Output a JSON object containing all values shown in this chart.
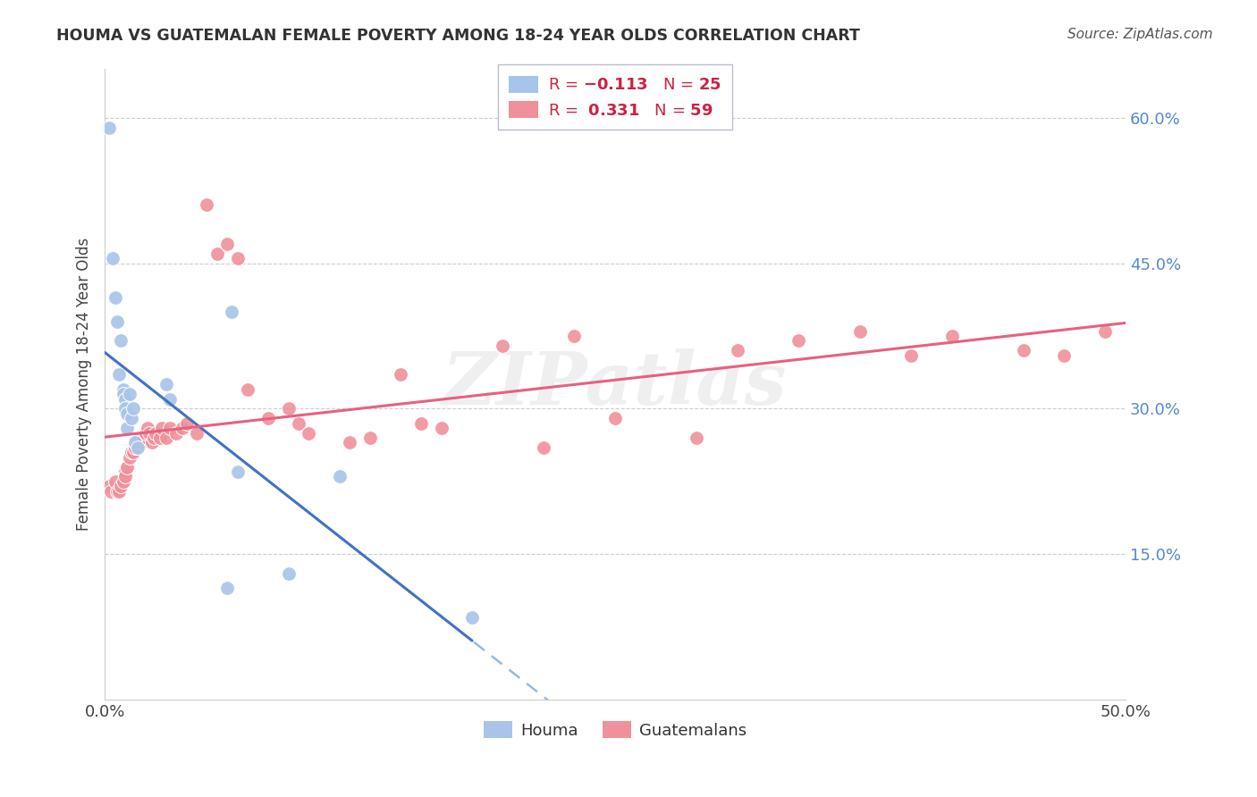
{
  "title": "HOUMA VS GUATEMALAN FEMALE POVERTY AMONG 18-24 YEAR OLDS CORRELATION CHART",
  "source": "Source: ZipAtlas.com",
  "ylabel": "Female Poverty Among 18-24 Year Olds",
  "right_ytick_labels": [
    "60.0%",
    "45.0%",
    "30.0%",
    "15.0%"
  ],
  "right_ytick_values": [
    0.6,
    0.45,
    0.3,
    0.15
  ],
  "houma_color": "#a8c4e8",
  "guatemalan_color": "#f0909a",
  "houma_line_color": "#4472c4",
  "guatemalan_line_color": "#e86080",
  "houma_dashed_color": "#88aadd",
  "background_color": "#ffffff",
  "watermark_text": "ZIPatlas",
  "houma_R": -0.113,
  "houma_N": 25,
  "guatemalan_R": 0.331,
  "guatemalan_N": 59,
  "houma_x": [
    0.002,
    0.004,
    0.005,
    0.006,
    0.007,
    0.008,
    0.009,
    0.009,
    0.01,
    0.01,
    0.011,
    0.011,
    0.012,
    0.013,
    0.014,
    0.015,
    0.016,
    0.03,
    0.032,
    0.06,
    0.062,
    0.065,
    0.09,
    0.115,
    0.18
  ],
  "houma_y": [
    0.59,
    0.455,
    0.415,
    0.39,
    0.335,
    0.37,
    0.32,
    0.315,
    0.31,
    0.3,
    0.28,
    0.295,
    0.315,
    0.29,
    0.3,
    0.265,
    0.26,
    0.325,
    0.31,
    0.115,
    0.4,
    0.235,
    0.13,
    0.23,
    0.085
  ],
  "guatemalan_x": [
    0.002,
    0.003,
    0.005,
    0.006,
    0.007,
    0.008,
    0.009,
    0.01,
    0.01,
    0.011,
    0.012,
    0.013,
    0.014,
    0.015,
    0.016,
    0.017,
    0.018,
    0.019,
    0.02,
    0.021,
    0.022,
    0.023,
    0.024,
    0.025,
    0.027,
    0.028,
    0.03,
    0.032,
    0.035,
    0.038,
    0.04,
    0.045,
    0.05,
    0.055,
    0.06,
    0.065,
    0.07,
    0.08,
    0.09,
    0.095,
    0.1,
    0.12,
    0.13,
    0.145,
    0.155,
    0.165,
    0.195,
    0.215,
    0.23,
    0.25,
    0.29,
    0.31,
    0.34,
    0.37,
    0.395,
    0.415,
    0.45,
    0.47,
    0.49
  ],
  "guatemalan_y": [
    0.22,
    0.215,
    0.225,
    0.215,
    0.215,
    0.22,
    0.225,
    0.235,
    0.23,
    0.24,
    0.25,
    0.255,
    0.255,
    0.26,
    0.265,
    0.27,
    0.265,
    0.27,
    0.275,
    0.28,
    0.275,
    0.265,
    0.27,
    0.275,
    0.27,
    0.28,
    0.27,
    0.28,
    0.275,
    0.28,
    0.285,
    0.275,
    0.51,
    0.46,
    0.47,
    0.455,
    0.32,
    0.29,
    0.3,
    0.285,
    0.275,
    0.265,
    0.27,
    0.335,
    0.285,
    0.28,
    0.365,
    0.26,
    0.375,
    0.29,
    0.27,
    0.36,
    0.37,
    0.38,
    0.355,
    0.375,
    0.36,
    0.355,
    0.38
  ],
  "xlim": [
    0.0,
    0.5
  ],
  "ylim": [
    0.0,
    0.65
  ],
  "houma_line_xrange": [
    0.0,
    0.18
  ],
  "houma_dashed_xrange": [
    0.18,
    0.5
  ]
}
